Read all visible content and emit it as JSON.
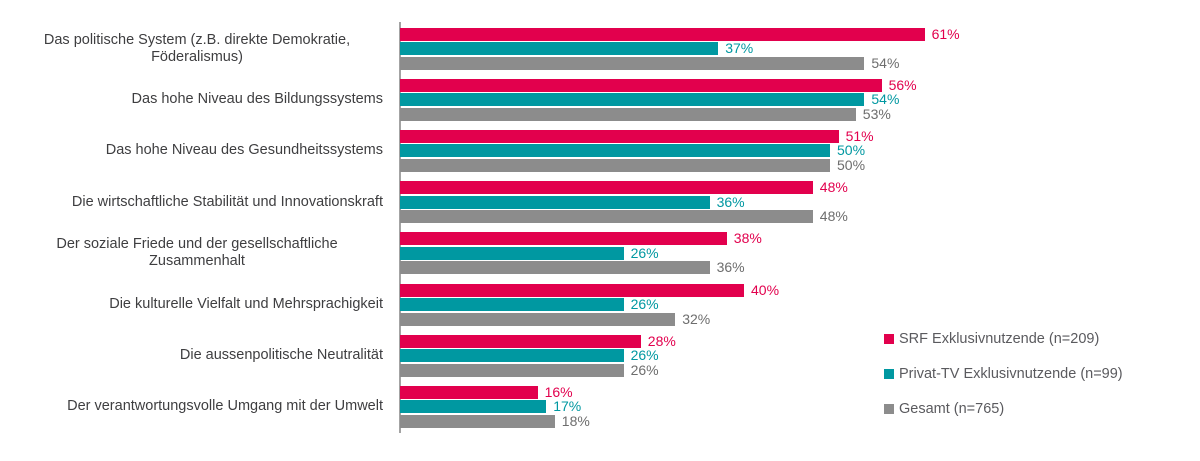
{
  "colors": {
    "background": "#FFFFFF",
    "axis": "#A3A3A3",
    "category_text": "#3E3E40",
    "legend_text": "#5A5A5E"
  },
  "chart_data": {
    "type": "bar",
    "orientation": "horizontal",
    "title": "",
    "xlabel": "",
    "ylabel": "",
    "value_suffix": "%",
    "xlim": [
      0,
      65
    ],
    "grid": false,
    "legend_position": "right-bottom",
    "categories": [
      "Das politische System (z.B. direkte Demokratie, Föderalismus)",
      "Das hohe Niveau des Bildungssystems",
      "Das hohe Niveau des Gesundheitssystems",
      "Die wirtschaftliche Stabilität und Innovationskraft",
      "Der soziale Friede und der gesellschaftliche Zusammenhalt",
      "Die kulturelle Vielfalt und Mehrsprachigkeit",
      "Die aussenpolitische Neutralität",
      "Der verantwortungsvolle Umgang mit der Umwelt"
    ],
    "series": [
      {
        "key": "srf",
        "name": "SRF Exklusivnutzende (n=209)",
        "color": "#E2004D",
        "value_label_color": "#E2004D",
        "values": [
          61,
          56,
          51,
          48,
          38,
          40,
          28,
          16
        ]
      },
      {
        "key": "privat-tv",
        "name": "Privat-TV Exklusivnutzende (n=99)",
        "color": "#0098A1",
        "value_label_color": "#0098A1",
        "values": [
          37,
          54,
          50,
          36,
          26,
          26,
          26,
          17
        ]
      },
      {
        "key": "gesamt",
        "name": "Gesamt (n=765)",
        "color": "#8C8C8C",
        "value_label_color": "#6D6D6D",
        "values": [
          54,
          53,
          50,
          48,
          36,
          32,
          26,
          18
        ]
      }
    ]
  }
}
